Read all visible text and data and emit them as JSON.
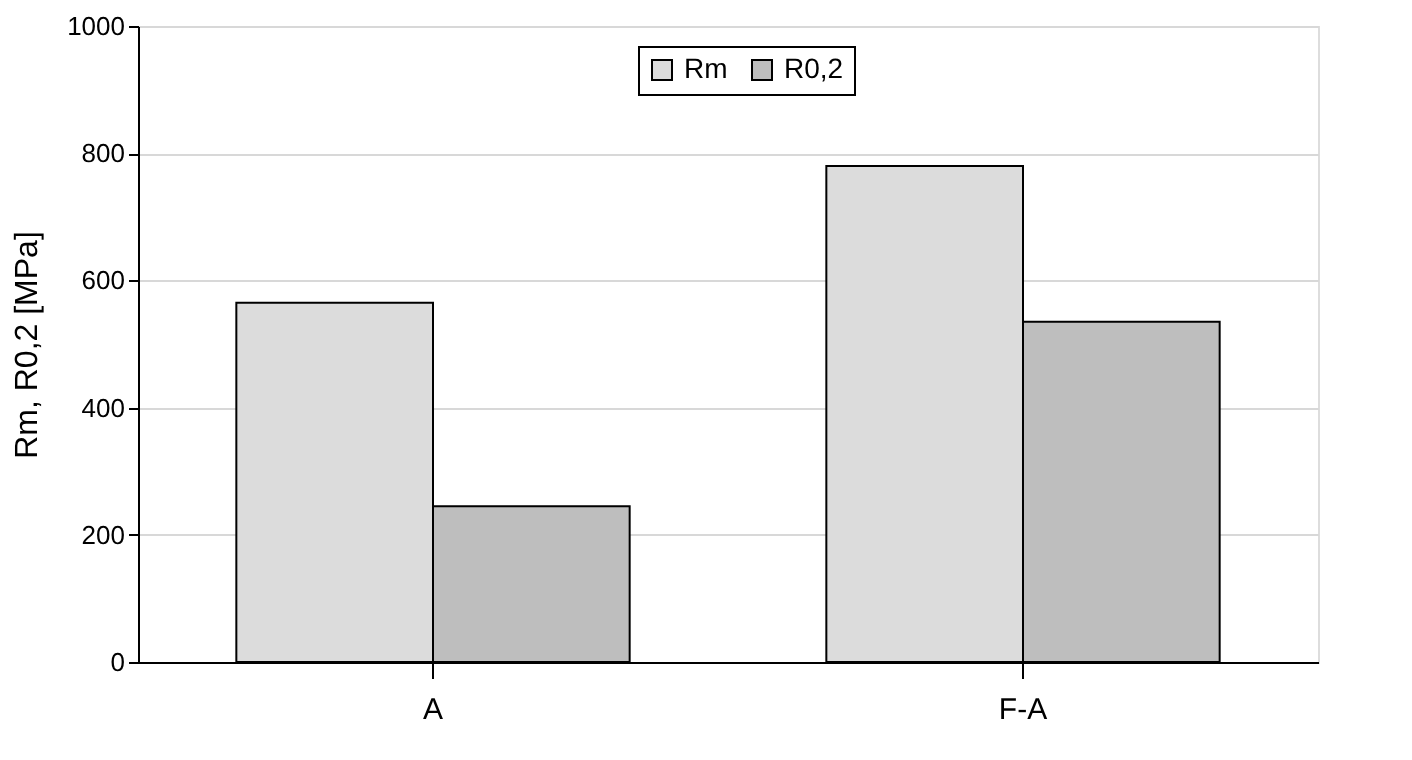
{
  "chart_data": {
    "type": "bar",
    "categories": [
      "A",
      "F-A"
    ],
    "series": [
      {
        "name": "Rm",
        "color": "#dcdcdc",
        "values": [
          565,
          780
        ]
      },
      {
        "name": "R0,2",
        "color": "#bebebe",
        "values": [
          245,
          535
        ]
      }
    ],
    "ylabel": "Rm, R0,2 [MPa]",
    "ylim": [
      0,
      1000
    ],
    "yticks": [
      0,
      200,
      400,
      600,
      800,
      1000
    ],
    "grid": "y",
    "legend": "top"
  }
}
